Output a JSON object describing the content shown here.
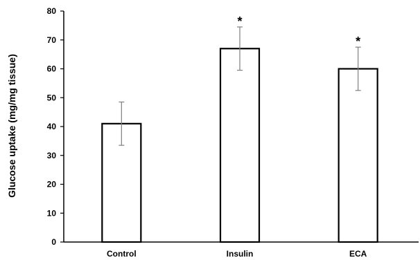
{
  "chart_data": {
    "type": "bar",
    "categories": [
      "Control",
      "Insulin",
      "ECA"
    ],
    "values": [
      41,
      67,
      60
    ],
    "error": [
      7.5,
      7.5,
      7.5
    ],
    "significance": [
      "",
      "*",
      "*"
    ],
    "title": "",
    "xlabel": "",
    "ylabel": "Glucose uptake (mg/mg tissue)",
    "ylim": [
      0,
      80
    ],
    "yticks": [
      0,
      10,
      20,
      30,
      40,
      50,
      60,
      70,
      80
    ],
    "grid": false,
    "legend": "none",
    "colors": {
      "bar_fill": "#ffffff",
      "bar_stroke": "#000000",
      "error_bar": "#7f7f7f",
      "axis": "#000000"
    }
  }
}
